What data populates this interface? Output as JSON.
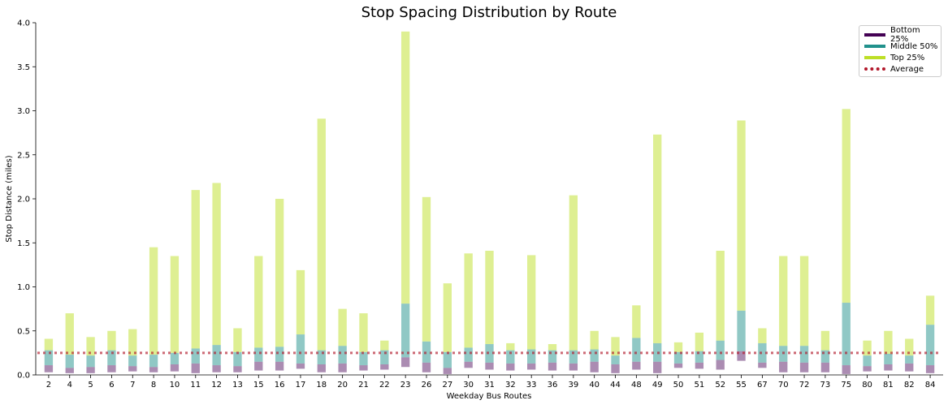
{
  "chart_data": {
    "type": "bar",
    "title": "Stop Spacing Distribution by Route",
    "xlabel": "Weekday Bus Routes",
    "ylabel": "Stop Distance (miles)",
    "ylim": [
      0,
      4.0
    ],
    "yticks": [
      "0.0",
      "0.5",
      "1.0",
      "1.5",
      "2.0",
      "2.5",
      "3.0",
      "3.5",
      "4.0"
    ],
    "average": 0.25,
    "categories": [
      "2",
      "4",
      "5",
      "6",
      "7",
      "8",
      "10",
      "11",
      "12",
      "13",
      "15",
      "16",
      "17",
      "18",
      "20",
      "21",
      "22",
      "23",
      "26",
      "27",
      "30",
      "31",
      "32",
      "33",
      "36",
      "39",
      "40",
      "44",
      "48",
      "49",
      "50",
      "51",
      "52",
      "55",
      "67",
      "70",
      "72",
      "73",
      "75",
      "80",
      "81",
      "82",
      "84"
    ],
    "series": [
      {
        "name": "Bottom 25%",
        "color": "#440154",
        "alpha": 0.45,
        "low": [
          0.03,
          0.02,
          0.02,
          0.03,
          0.04,
          0.03,
          0.04,
          0.02,
          0.03,
          0.03,
          0.05,
          0.05,
          0.07,
          0.03,
          0.03,
          0.05,
          0.06,
          0.09,
          0.03,
          0.01,
          0.08,
          0.06,
          0.05,
          0.06,
          0.05,
          0.05,
          0.03,
          0.02,
          0.06,
          0.02,
          0.08,
          0.07,
          0.06,
          0.16,
          0.08,
          0.03,
          0.03,
          0.03,
          0.01,
          0.04,
          0.05,
          0.04,
          0.02
        ],
        "high": [
          0.11,
          0.08,
          0.09,
          0.11,
          0.1,
          0.09,
          0.12,
          0.13,
          0.11,
          0.1,
          0.15,
          0.15,
          0.13,
          0.12,
          0.13,
          0.11,
          0.12,
          0.2,
          0.14,
          0.08,
          0.15,
          0.14,
          0.13,
          0.13,
          0.14,
          0.13,
          0.15,
          0.12,
          0.15,
          0.15,
          0.13,
          0.14,
          0.17,
          0.27,
          0.14,
          0.15,
          0.14,
          0.14,
          0.11,
          0.1,
          0.12,
          0.13,
          0.11
        ]
      },
      {
        "name": "Middle 50%",
        "color": "#21918c",
        "alpha": 0.5,
        "low": [
          0.11,
          0.08,
          0.09,
          0.11,
          0.1,
          0.09,
          0.12,
          0.13,
          0.11,
          0.1,
          0.15,
          0.15,
          0.13,
          0.12,
          0.13,
          0.11,
          0.12,
          0.2,
          0.14,
          0.08,
          0.15,
          0.14,
          0.13,
          0.13,
          0.14,
          0.13,
          0.15,
          0.12,
          0.15,
          0.15,
          0.13,
          0.14,
          0.17,
          0.27,
          0.14,
          0.15,
          0.14,
          0.14,
          0.11,
          0.1,
          0.12,
          0.13,
          0.11
        ],
        "high": [
          0.28,
          0.23,
          0.22,
          0.28,
          0.22,
          0.23,
          0.25,
          0.3,
          0.34,
          0.26,
          0.31,
          0.32,
          0.46,
          0.28,
          0.33,
          0.26,
          0.28,
          0.81,
          0.38,
          0.26,
          0.31,
          0.35,
          0.28,
          0.29,
          0.28,
          0.28,
          0.29,
          0.22,
          0.42,
          0.36,
          0.26,
          0.27,
          0.39,
          0.73,
          0.36,
          0.33,
          0.33,
          0.28,
          0.82,
          0.22,
          0.24,
          0.22,
          0.57
        ]
      },
      {
        "name": "Top 25%",
        "color": "#bddf26",
        "alpha": 0.5,
        "low": [
          0.28,
          0.23,
          0.22,
          0.28,
          0.22,
          0.23,
          0.25,
          0.3,
          0.34,
          0.26,
          0.31,
          0.32,
          0.46,
          0.28,
          0.33,
          0.26,
          0.28,
          0.81,
          0.38,
          0.26,
          0.31,
          0.35,
          0.28,
          0.29,
          0.28,
          0.28,
          0.29,
          0.22,
          0.42,
          0.36,
          0.26,
          0.27,
          0.39,
          0.73,
          0.36,
          0.33,
          0.33,
          0.28,
          0.82,
          0.22,
          0.24,
          0.22,
          0.57
        ],
        "high": [
          0.41,
          0.7,
          0.43,
          0.5,
          0.52,
          1.45,
          1.35,
          2.1,
          2.18,
          0.53,
          1.35,
          2.0,
          1.19,
          2.91,
          0.75,
          0.7,
          0.39,
          3.9,
          2.02,
          1.04,
          1.38,
          1.41,
          0.36,
          1.36,
          0.35,
          2.04,
          0.5,
          0.43,
          0.79,
          2.73,
          0.37,
          0.48,
          1.41,
          2.89,
          0.53,
          1.35,
          1.35,
          0.5,
          3.02,
          0.39,
          0.5,
          0.41,
          0.9
        ]
      }
    ],
    "legend": [
      "Bottom 25%",
      "Middle 50%",
      "Top 25%",
      "Average"
    ],
    "legend_position": "upper right",
    "average_color": "#b2182b"
  }
}
